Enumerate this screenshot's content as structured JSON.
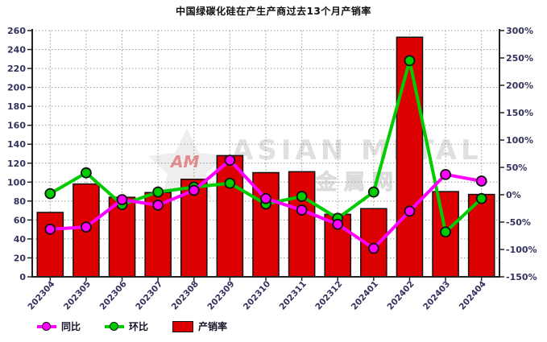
{
  "title": "中国绿碳化硅在产生产商过去13个月产销率",
  "watermark": {
    "logo_text": "AM",
    "text_en": "ASIAN METAL",
    "text_zh": "亚洲金属网"
  },
  "legend": {
    "items": [
      {
        "label": "同比",
        "type": "line",
        "color": "#ff00ff"
      },
      {
        "label": "环比",
        "type": "line",
        "color": "#00cc00"
      },
      {
        "label": "产销率",
        "type": "bar",
        "color": "#dd0000"
      }
    ]
  },
  "colors": {
    "bar_fill": "#dd0000",
    "yoy_line": "#ff00ff",
    "mom_line": "#00cc00",
    "axis_label": "#33335e",
    "axis_line": "#222222",
    "grid_line": "#9a9a9a",
    "marker_stroke": "#111111",
    "watermark_grey": "#d9d9d9",
    "watermark_red": "#e26a6a"
  },
  "chart_data": {
    "type": "bar",
    "title": "中国绿碳化硅在产生产商过去13个月产销率",
    "categories": [
      "202304",
      "202305",
      "202306",
      "202307",
      "202308",
      "202309",
      "202310",
      "202311",
      "202312",
      "202401",
      "202402",
      "202403",
      "202404"
    ],
    "series": [
      {
        "name": "产销率",
        "type": "bar",
        "axis": "left",
        "color": "#dd0000",
        "values": [
          68,
          98,
          84,
          89,
          103,
          128,
          110,
          111,
          66,
          72,
          253,
          90,
          87
        ]
      },
      {
        "name": "同比",
        "type": "line",
        "axis": "right",
        "color": "#ff00ff",
        "unit": "%",
        "values": [
          -63,
          -59,
          -9,
          -19,
          8,
          63,
          -7,
          -28,
          -54,
          -98,
          -30,
          37,
          25
        ]
      },
      {
        "name": "环比",
        "type": "line",
        "axis": "right",
        "color": "#00cc00",
        "unit": "%",
        "values": [
          2,
          40,
          -18,
          5,
          14,
          21,
          -17,
          -3,
          -43,
          5,
          245,
          -68,
          -7
        ]
      }
    ],
    "left_axis": {
      "min": 0,
      "max": 260,
      "step": 20,
      "tick_values": [
        0,
        20,
        40,
        60,
        80,
        100,
        120,
        140,
        160,
        180,
        200,
        220,
        240,
        260
      ],
      "suffix": ""
    },
    "right_axis": {
      "min": -150,
      "max": 300,
      "step": 50,
      "tick_values": [
        -150,
        -100,
        -50,
        0,
        50,
        100,
        150,
        200,
        250,
        300
      ],
      "suffix": "%"
    },
    "grid": true,
    "legend_position": "bottom",
    "xlabel": "",
    "ylabel": ""
  }
}
